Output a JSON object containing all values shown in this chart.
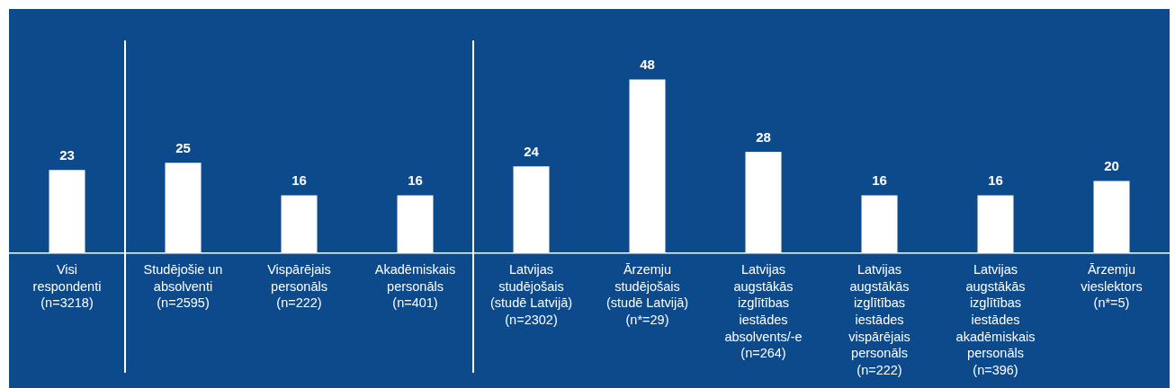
{
  "chart_data": {
    "type": "bar",
    "categories": [
      "Visi\nrespondenti\n(n=3218)",
      "Studējošie un\nabsolventi\n(n=2595)",
      "Vispārējais\npersonāls\n(n=222)",
      "Akadēmiskais\npersonāls\n(n=401)",
      "Latvijas\nstudējošais\n(studē Latvijā)\n(n=2302)",
      "Ārzemju\nstudējošais\n(studē Latvijā)\n(n*=29)",
      "Latvijas\naugstākās\nizglītības\niestādes\nabsolvents/-e\n(n=264)",
      "Latvijas\naugstākās\nizglītības\niestādes\nvispārējais\npersonāls\n(n=222)",
      "Latvijas\naugstākās\nizglītības\niestādes\nakadēmiskais\npersonāls\n(n=396)",
      "Ārzemju\nvieslektors\n(n*=5)"
    ],
    "values": [
      23,
      25,
      16,
      16,
      24,
      48,
      28,
      16,
      16,
      20
    ],
    "color": "#ffffff",
    "data_labels": true,
    "grid": false,
    "legend": false
  }
}
